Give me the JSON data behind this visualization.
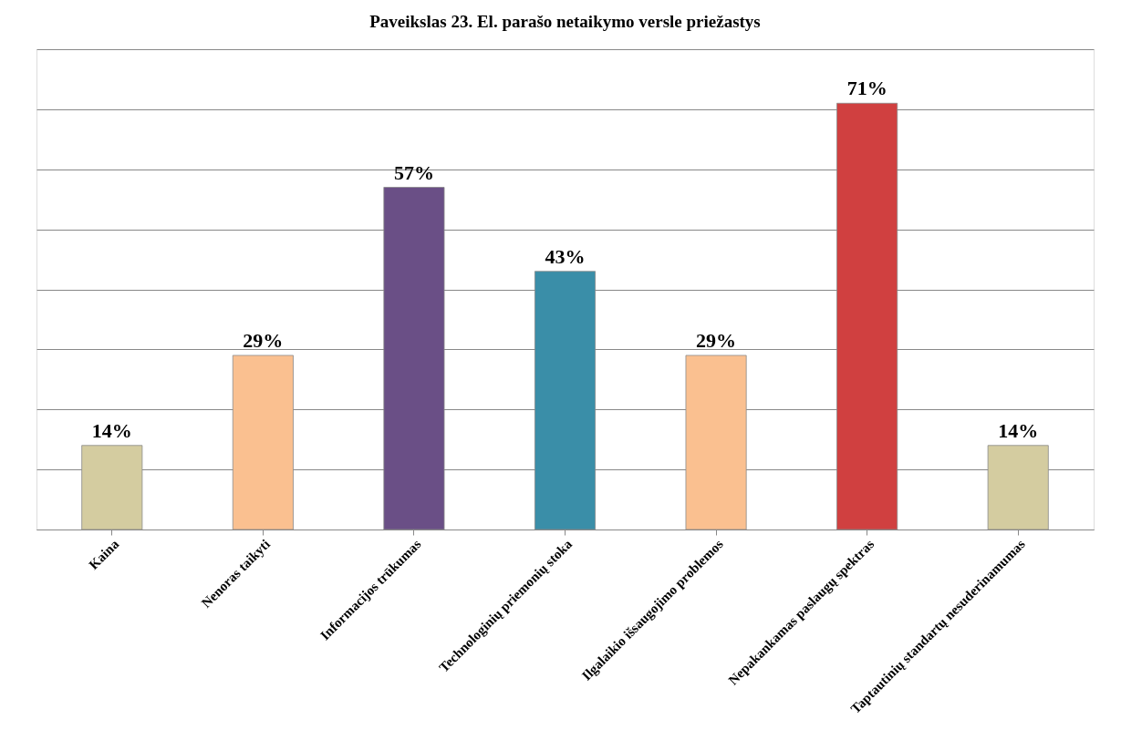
{
  "chart_data": {
    "type": "bar",
    "title": "Paveikslas 23. El. parašo netaikymo versle priežastys",
    "categories": [
      "Kaina",
      "Nenoras taikyti",
      "Informacijos trūkumas",
      "Technologinių priemonių stoka",
      "Ilgalaikio išsaugojimo problemos",
      "Nepakankamas paslaugų spektras",
      "Taptautinių standartų nesuderinamumas"
    ],
    "values": [
      14,
      29,
      57,
      43,
      29,
      71,
      14
    ],
    "colors": [
      "#d4cca0",
      "#fac090",
      "#6a4f86",
      "#3a8ea8",
      "#fac090",
      "#d04040",
      "#d4cca0"
    ],
    "value_labels": [
      "14%",
      "29%",
      "57%",
      "43%",
      "29%",
      "71%",
      "14%"
    ],
    "ylim": [
      0,
      80
    ],
    "yticks": [
      {
        "value": 0,
        "label": null
      },
      {
        "value": 10,
        "label": null
      },
      {
        "value": 20,
        "label": null
      },
      {
        "value": 30,
        "label": null
      },
      {
        "value": 40,
        "label": null
      },
      {
        "value": 50,
        "label": null
      },
      {
        "value": 60,
        "label": null
      },
      {
        "value": 70,
        "label": null
      },
      {
        "value": 80,
        "label": null
      }
    ],
    "grid": "y",
    "tick_labels": "x"
  }
}
